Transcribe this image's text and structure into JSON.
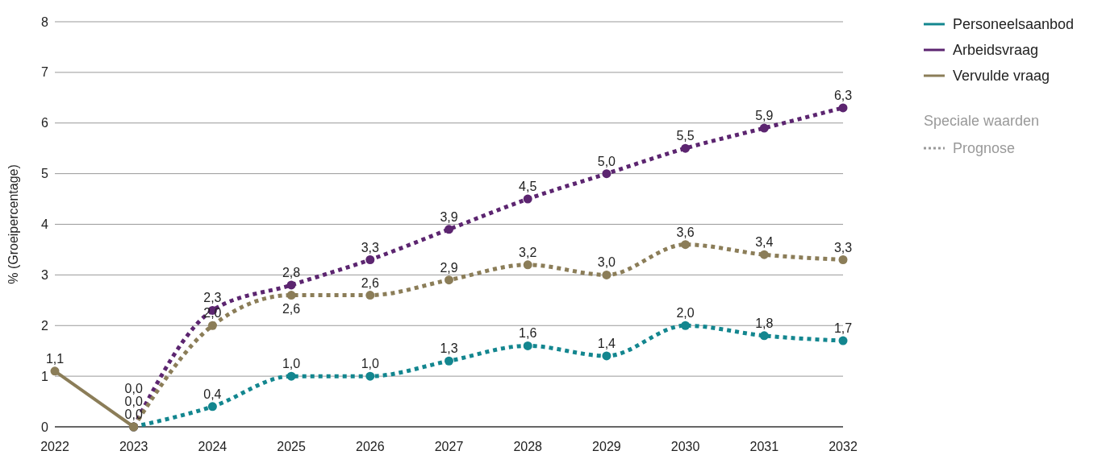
{
  "chart_data": {
    "type": "line",
    "ylabel": "% (Groeipercentage)",
    "xlim": [
      2022,
      2032
    ],
    "xticks": [
      2022,
      2023,
      2024,
      2025,
      2026,
      2027,
      2028,
      2029,
      2030,
      2031,
      2032
    ],
    "ylim": [
      0,
      8
    ],
    "yticks": [
      0,
      1,
      2,
      3,
      4,
      5,
      6,
      7,
      8
    ],
    "grid": "y",
    "legend": "top right",
    "marker": "circle",
    "annotations": [
      "Speciale waarden",
      "Prognose"
    ],
    "series": [
      {
        "name": "Personeelsaanbod",
        "color": "#13868f",
        "line_style": "dotted",
        "x": [
          2023,
          2024,
          2025,
          2026,
          2027,
          2028,
          2029,
          2030,
          2031,
          2032
        ],
        "values": [
          0.0,
          0.4,
          1.0,
          1.0,
          1.3,
          1.6,
          1.4,
          2.0,
          1.8,
          1.7
        ],
        "value_labels": [
          "0,0",
          "0,4",
          "1,0",
          "1,0",
          "1,3",
          "1,6",
          "1,4",
          "2,0",
          "1,8",
          "1,7"
        ]
      },
      {
        "name": "Arbeidsvraag",
        "color": "#5c2570",
        "line_style": "dotted",
        "x": [
          2023,
          2024,
          2025,
          2026,
          2027,
          2028,
          2029,
          2030,
          2031,
          2032
        ],
        "values": [
          0.0,
          2.3,
          2.8,
          3.3,
          3.9,
          4.5,
          5.0,
          5.5,
          5.9,
          6.3
        ],
        "value_labels": [
          "0,0",
          "2,3",
          "2,8",
          "3,3",
          "3,9",
          "4,5",
          "5,0",
          "5,5",
          "5,9",
          "6,3"
        ]
      },
      {
        "name": "Vervulde vraag",
        "color": "#8b7d58",
        "line_style": "dotted",
        "x": [
          2023,
          2024,
          2025,
          2026,
          2027,
          2028,
          2029,
          2030,
          2031,
          2032
        ],
        "values": [
          0.0,
          2.0,
          2.6,
          2.6,
          2.9,
          3.2,
          3.0,
          3.6,
          3.4,
          3.3
        ],
        "value_labels": [
          null,
          "2,0",
          "2,6",
          "2,6",
          "2,9",
          "3,2",
          "3,0",
          "3,6",
          "3,4",
          "3,3"
        ]
      },
      {
        "color": "#8b7d58",
        "line_style": "solid",
        "x": [
          2022,
          2023
        ],
        "values": [
          1.1,
          0.0
        ],
        "value_labels": [
          "1,1",
          "0,0"
        ]
      }
    ]
  }
}
